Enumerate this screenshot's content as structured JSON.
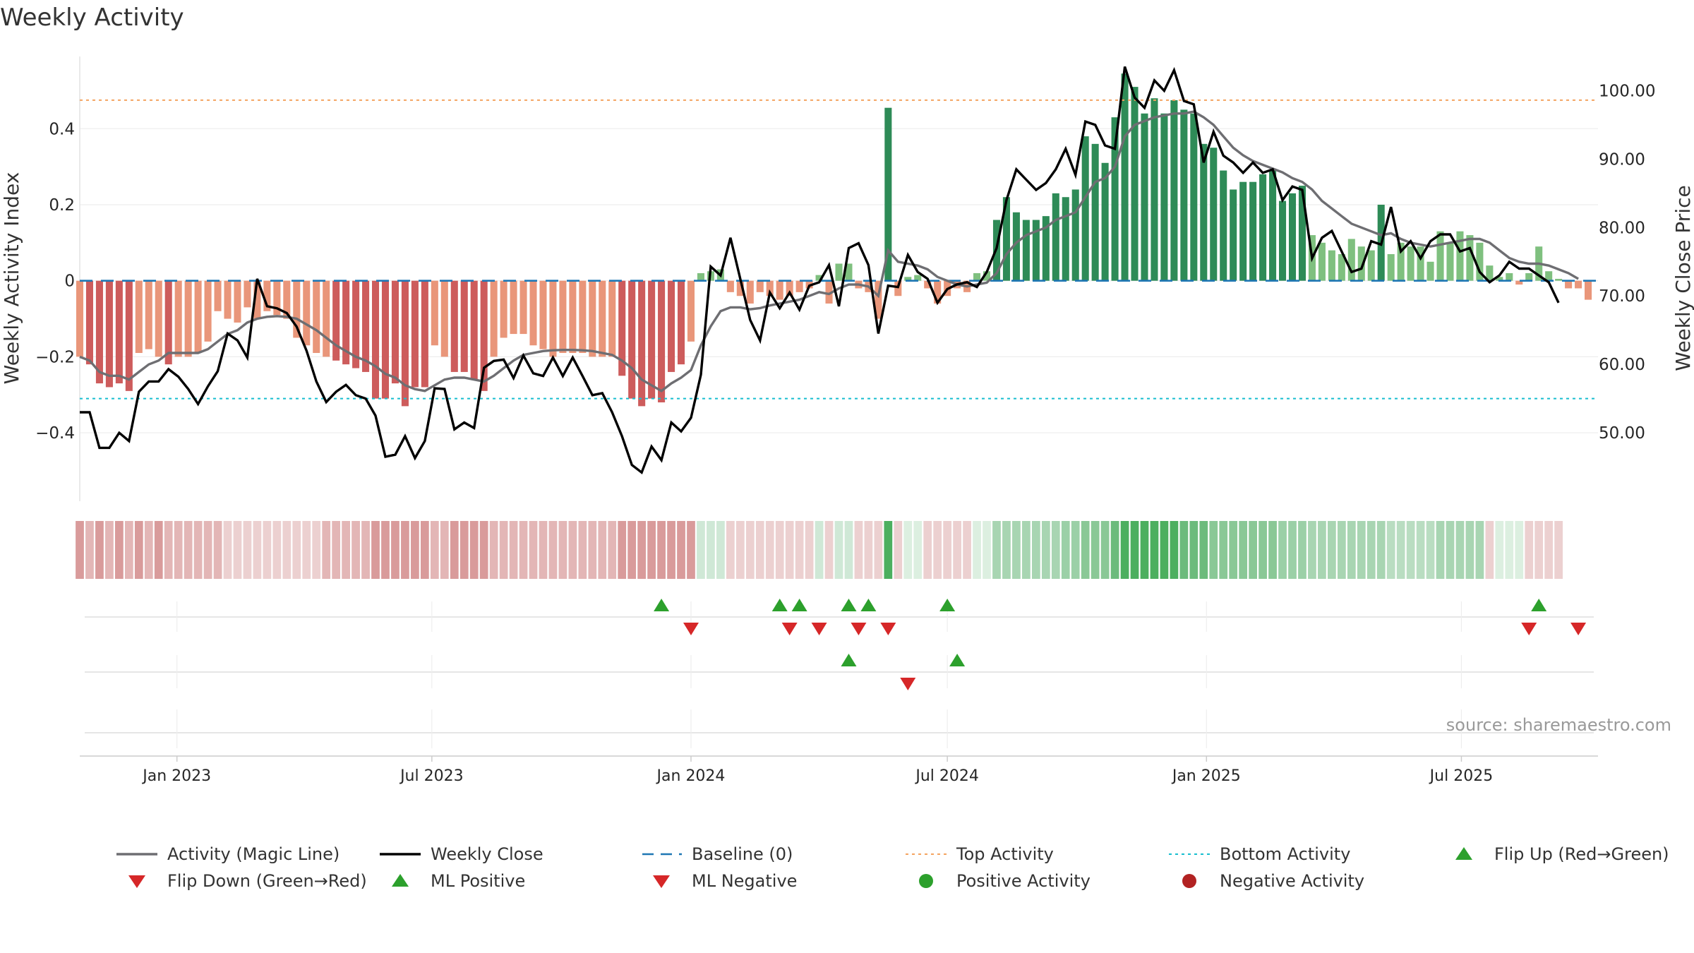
{
  "chart_data": {
    "type": "bar",
    "title": "Weekly Activity",
    "ylabel_left": "Weekly Activity Index",
    "ylabel_right": "Weekly Close Price",
    "source_text": "source: sharemaestro.com",
    "x_start": "2022-10-24",
    "x_end": "2025-10-06",
    "x_ticks": [
      {
        "date": "2023-01-01",
        "label": "Jan 2023"
      },
      {
        "date": "2023-07-01",
        "label": "Jul 2023"
      },
      {
        "date": "2024-01-01",
        "label": "Jan 2024"
      },
      {
        "date": "2024-07-01",
        "label": "Jul 2024"
      },
      {
        "date": "2025-01-01",
        "label": "Jan 2025"
      },
      {
        "date": "2025-07-01",
        "label": "Jul 2025"
      }
    ],
    "y_left": {
      "range": [
        -0.58,
        0.59
      ],
      "ticks": [
        {
          "v": 0.4,
          "label": "0.4"
        },
        {
          "v": 0.2,
          "label": "0.2"
        },
        {
          "v": 0,
          "label": "0"
        },
        {
          "v": -0.2,
          "label": "−0.2"
        },
        {
          "v": -0.4,
          "label": "−0.4"
        }
      ]
    },
    "y_right": {
      "range": [
        40,
        105
      ],
      "ticks": [
        {
          "v": 100,
          "label": "100.00"
        },
        {
          "v": 90,
          "label": "90.00"
        },
        {
          "v": 80,
          "label": "80.00"
        },
        {
          "v": 70,
          "label": "70.00"
        },
        {
          "v": 60,
          "label": "60.00"
        },
        {
          "v": 50,
          "label": "50.00"
        }
      ]
    },
    "top_activity": 0.475,
    "bottom_activity": -0.31,
    "baseline": 0,
    "activity": [
      -0.2,
      -0.22,
      -0.27,
      -0.28,
      -0.27,
      -0.29,
      -0.19,
      -0.18,
      -0.2,
      -0.22,
      -0.2,
      -0.2,
      -0.19,
      -0.16,
      -0.08,
      -0.1,
      -0.11,
      -0.07,
      -0.1,
      -0.08,
      -0.09,
      -0.1,
      -0.15,
      -0.17,
      -0.19,
      -0.2,
      -0.21,
      -0.22,
      -0.23,
      -0.24,
      -0.31,
      -0.31,
      -0.27,
      -0.33,
      -0.28,
      -0.28,
      -0.17,
      -0.2,
      -0.24,
      -0.24,
      -0.26,
      -0.29,
      -0.2,
      -0.15,
      -0.14,
      -0.14,
      -0.17,
      -0.18,
      -0.2,
      -0.19,
      -0.19,
      -0.19,
      -0.2,
      -0.2,
      -0.2,
      -0.25,
      -0.31,
      -0.33,
      -0.31,
      -0.32,
      -0.24,
      -0.22,
      -0.16,
      0.02,
      0.025,
      0.03,
      -0.03,
      -0.04,
      -0.06,
      -0.03,
      -0.04,
      -0.05,
      -0.04,
      -0.03,
      -0.02,
      0.015,
      -0.06,
      0.045,
      0.045,
      -0.02,
      -0.03,
      -0.1,
      0.455,
      -0.04,
      0.01,
      0.015,
      -0.02,
      -0.06,
      -0.04,
      -0.02,
      -0.03,
      0.02,
      0.025,
      0.16,
      0.22,
      0.18,
      0.16,
      0.16,
      0.17,
      0.23,
      0.22,
      0.24,
      0.38,
      0.36,
      0.31,
      0.43,
      0.545,
      0.51,
      0.44,
      0.48,
      0.44,
      0.475,
      0.45,
      0.44,
      0.36,
      0.35,
      0.29,
      0.24,
      0.26,
      0.26,
      0.28,
      0.29,
      0.21,
      0.23,
      0.25,
      0.12,
      0.1,
      0.08,
      0.07,
      0.11,
      0.09,
      0.08,
      0.2,
      0.07,
      0.1,
      0.09,
      0.09,
      0.05,
      0.13,
      0.1,
      0.13,
      0.12,
      0.1,
      0.04,
      0.01,
      0.02,
      -0.01,
      0.02,
      0.09,
      0.025,
      0.005,
      -0.02,
      -0.02,
      -0.05
    ],
    "close": [
      53,
      53,
      47.8,
      47.8,
      50,
      48.8,
      56,
      57.5,
      57.5,
      59.3,
      58.2,
      56.4,
      54.2,
      56.8,
      59,
      64.5,
      63.5,
      61,
      72.5,
      68.5,
      68.2,
      67.5,
      65.5,
      62,
      57.5,
      54.5,
      56,
      57,
      55.5,
      55,
      52.5,
      46.5,
      46.8,
      49.5,
      46.3,
      48.8,
      56.5,
      56.4,
      50.5,
      51.5,
      50.7,
      59.5,
      60.5,
      60.7,
      58,
      61.3,
      58.7,
      58.3,
      61,
      58.3,
      61,
      58.3,
      55.5,
      55.8,
      53,
      49.5,
      45.3,
      44.2,
      48,
      46,
      51.5,
      50.2,
      52.2,
      58.5,
      74.3,
      73,
      78.5,
      72.5,
      66.5,
      63.5,
      70.5,
      68.2,
      70.5,
      68,
      71.5,
      72,
      74.5,
      68.5,
      77,
      77.7,
      74.5,
      64.5,
      71.5,
      71.3,
      76,
      73.5,
      72.5,
      69,
      71,
      71.7,
      72,
      71.3,
      73.5,
      77,
      84,
      88.5,
      87,
      85.5,
      86.5,
      88.5,
      91.5,
      87.7,
      95.5,
      95,
      92,
      91.5,
      103.5,
      99,
      97.5,
      101.5,
      100,
      103,
      98.5,
      98,
      89.5,
      94,
      90.5,
      89.5,
      88,
      89.5,
      88,
      88.5,
      84,
      86,
      85.5,
      75.5,
      78.5,
      79.5,
      76.5,
      73.5,
      74,
      78,
      77.5,
      83,
      76.5,
      78,
      75.5,
      78,
      79,
      79,
      76.5,
      77,
      73.5,
      72,
      73,
      75,
      74,
      74,
      73,
      72,
      69
    ],
    "magic_line": [
      -0.2,
      -0.21,
      -0.24,
      -0.25,
      -0.25,
      -0.26,
      -0.24,
      -0.22,
      -0.21,
      -0.19,
      -0.19,
      -0.19,
      -0.19,
      -0.18,
      -0.16,
      -0.14,
      -0.13,
      -0.11,
      -0.1,
      -0.095,
      -0.093,
      -0.095,
      -0.1,
      -0.115,
      -0.13,
      -0.15,
      -0.17,
      -0.185,
      -0.2,
      -0.21,
      -0.225,
      -0.245,
      -0.255,
      -0.275,
      -0.285,
      -0.29,
      -0.275,
      -0.26,
      -0.255,
      -0.255,
      -0.26,
      -0.265,
      -0.25,
      -0.23,
      -0.21,
      -0.195,
      -0.19,
      -0.185,
      -0.183,
      -0.182,
      -0.182,
      -0.183,
      -0.185,
      -0.19,
      -0.195,
      -0.21,
      -0.23,
      -0.26,
      -0.275,
      -0.29,
      -0.27,
      -0.255,
      -0.235,
      -0.17,
      -0.12,
      -0.08,
      -0.07,
      -0.07,
      -0.075,
      -0.072,
      -0.065,
      -0.06,
      -0.055,
      -0.05,
      -0.04,
      -0.03,
      -0.035,
      -0.02,
      -0.01,
      -0.01,
      -0.015,
      -0.04,
      0.08,
      0.05,
      0.045,
      0.04,
      0.03,
      0.01,
      0,
      -0.01,
      -0.015,
      -0.01,
      -0.005,
      0.02,
      0.07,
      0.1,
      0.12,
      0.13,
      0.14,
      0.16,
      0.17,
      0.18,
      0.22,
      0.26,
      0.27,
      0.3,
      0.38,
      0.41,
      0.42,
      0.43,
      0.435,
      0.44,
      0.44,
      0.445,
      0.43,
      0.41,
      0.38,
      0.35,
      0.33,
      0.315,
      0.305,
      0.295,
      0.285,
      0.27,
      0.26,
      0.24,
      0.21,
      0.19,
      0.17,
      0.15,
      0.14,
      0.13,
      0.12,
      0.125,
      0.11,
      0.1,
      0.095,
      0.09,
      0.095,
      0.1,
      0.105,
      0.11,
      0.11,
      0.1,
      0.08,
      0.06,
      0.05,
      0.045,
      0.045,
      0.04,
      0.03,
      0.02,
      0.005
    ],
    "strip_colors": [
      "#d99b9b",
      "#e3b6b6",
      "#d99b9b",
      "#e3b6b6",
      "#d99b9b",
      "#e3b6b6",
      "#d99b9b",
      "#e3b6b6",
      "#d99b9b",
      "#e3b6b6",
      "#e3b6b6",
      "#e3b6b6",
      "#e3b6b6",
      "#e3b6b6",
      "#e3b6b6",
      "#ecd0d0",
      "#ecd0d0",
      "#ecd0d0",
      "#ecd0d0",
      "#ecd0d0",
      "#ecd0d0",
      "#ecd0d0",
      "#ecd0d0",
      "#ecd0d0",
      "#ecd0d0",
      "#e3b6b6",
      "#e3b6b6",
      "#e3b6b6",
      "#e3b6b6",
      "#e3b6b6",
      "#d99b9b",
      "#d99b9b",
      "#d99b9b",
      "#d99b9b",
      "#d99b9b",
      "#d99b9b",
      "#e3b6b6",
      "#e3b6b6",
      "#d99b9b",
      "#d99b9b",
      "#d99b9b",
      "#d99b9b",
      "#e3b6b6",
      "#e3b6b6",
      "#e3b6b6",
      "#e3b6b6",
      "#e3b6b6",
      "#e3b6b6",
      "#e3b6b6",
      "#e3b6b6",
      "#e3b6b6",
      "#e3b6b6",
      "#e3b6b6",
      "#e3b6b6",
      "#e3b6b6",
      "#d99b9b",
      "#d99b9b",
      "#d99b9b",
      "#d99b9b",
      "#d99b9b",
      "#d99b9b",
      "#d99b9b",
      "#d99b9b",
      "#cfe8d6",
      "#cfe8d6",
      "#cfe8d6",
      "#ecd0d0",
      "#ecd0d0",
      "#ecd0d0",
      "#ecd0d0",
      "#ecd0d0",
      "#ecd0d0",
      "#ecd0d0",
      "#ecd0d0",
      "#ecd0d0",
      "#cfe8d6",
      "#ecd0d0",
      "#cfe8d6",
      "#cfe8d6",
      "#ecd0d0",
      "#ecd0d0",
      "#ecd0d0",
      "#4caf5f",
      "#ecd0d0",
      "#dcefe0",
      "#dcefe0",
      "#ecd0d0",
      "#ecd0d0",
      "#ecd0d0",
      "#ecd0d0",
      "#ecd0d0",
      "#dcefe0",
      "#dcefe0",
      "#a8d5b2",
      "#a8d5b2",
      "#a8d5b2",
      "#a8d5b2",
      "#a8d5b2",
      "#a8d5b2",
      "#a8d5b2",
      "#9bd0a7",
      "#9bd0a7",
      "#8ac896",
      "#8ac896",
      "#8ac896",
      "#6cbb7c",
      "#4caf5f",
      "#4caf5f",
      "#4caf5f",
      "#4caf5f",
      "#4caf5f",
      "#4caf5f",
      "#6cbb7c",
      "#6cbb7c",
      "#6cbb7c",
      "#8ac896",
      "#8ac896",
      "#8ac896",
      "#8ac896",
      "#8ac896",
      "#8ac896",
      "#8ac896",
      "#9bd0a7",
      "#9bd0a7",
      "#9bd0a7",
      "#a8d5b2",
      "#a8d5b2",
      "#a8d5b2",
      "#a8d5b2",
      "#a8d5b2",
      "#a8d5b2",
      "#a8d5b2",
      "#a8d5b2",
      "#b9ddc1",
      "#b9ddc1",
      "#b9ddc1",
      "#b9ddc1",
      "#b9ddc1",
      "#a8d5b2",
      "#a8d5b2",
      "#a8d5b2",
      "#a8d5b2",
      "#a8d5b2",
      "#ecd0d0",
      "#dcefe0",
      "#dcefe0",
      "#dcefe0",
      "#ecd0d0",
      "#ecd0d0",
      "#ecd0d0",
      "#ecd0d0"
    ],
    "flip_up_dates": [
      "2023-12-11",
      "2024-03-04",
      "2024-03-18",
      "2024-04-22",
      "2024-05-06",
      "2024-07-01",
      "2025-08-25"
    ],
    "flip_down_dates": [
      "2024-01-01",
      "2024-03-11",
      "2024-04-01",
      "2024-04-29",
      "2024-05-20",
      "2025-08-18",
      "2025-09-22"
    ],
    "ml_positive_dates": [
      "2024-04-22",
      "2024-07-08"
    ],
    "ml_negative_dates": [
      "2024-06-03"
    ],
    "legend": [
      {
        "label": "Activity (Magic Line)",
        "marker": "line",
        "color": "#6e6e72"
      },
      {
        "label": "Weekly Close",
        "marker": "line",
        "color": "#000000"
      },
      {
        "label": "Baseline (0)",
        "marker": "dash",
        "color": "#1f77b4"
      },
      {
        "label": "Top Activity",
        "marker": "dot-line",
        "color": "#f4a460"
      },
      {
        "label": "Bottom Activity",
        "marker": "dot-line",
        "color": "#17becf"
      },
      {
        "label": "Flip Up (Red→Green)",
        "marker": "triangle-up",
        "color": "#2ca02c"
      },
      {
        "label": "Flip Down (Green→Red)",
        "marker": "triangle-down",
        "color": "#d62728"
      },
      {
        "label": "ML Positive",
        "marker": "triangle-up",
        "color": "#2ca02c"
      },
      {
        "label": "ML Negative",
        "marker": "triangle-down",
        "color": "#d62728"
      },
      {
        "label": "Positive Activity",
        "marker": "circle",
        "color": "#2ca02c"
      },
      {
        "label": "Negative Activity",
        "marker": "circle",
        "color": "#b22222"
      }
    ]
  }
}
